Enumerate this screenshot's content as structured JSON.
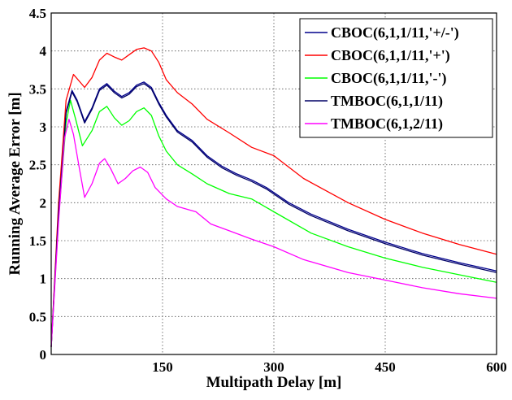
{
  "chart_data": {
    "type": "line",
    "xlabel": "Multipath Delay [m]",
    "ylabel": "Running Average Error [m]",
    "xlim": [
      0,
      600
    ],
    "ylim": [
      0,
      4.5
    ],
    "xticks": [
      150,
      300,
      450,
      600
    ],
    "yticks": [
      0,
      0.5,
      1,
      1.5,
      2,
      2.5,
      3,
      3.5,
      4,
      4.5
    ],
    "grid": true,
    "legend_position": "top-right",
    "series": [
      {
        "name": "CBOC(6,1,1/11,'+/-')",
        "color": "#00008b",
        "points": [
          [
            0,
            0.1
          ],
          [
            10,
            1.9
          ],
          [
            20,
            3.2
          ],
          [
            28,
            3.48
          ],
          [
            35,
            3.35
          ],
          [
            45,
            3.07
          ],
          [
            55,
            3.25
          ],
          [
            65,
            3.5
          ],
          [
            75,
            3.57
          ],
          [
            85,
            3.47
          ],
          [
            95,
            3.4
          ],
          [
            105,
            3.45
          ],
          [
            115,
            3.55
          ],
          [
            125,
            3.59
          ],
          [
            135,
            3.52
          ],
          [
            145,
            3.32
          ],
          [
            155,
            3.15
          ],
          [
            170,
            2.95
          ],
          [
            190,
            2.82
          ],
          [
            210,
            2.62
          ],
          [
            230,
            2.48
          ],
          [
            250,
            2.38
          ],
          [
            270,
            2.3
          ],
          [
            290,
            2.2
          ],
          [
            320,
            2.0
          ],
          [
            350,
            1.85
          ],
          [
            400,
            1.65
          ],
          [
            450,
            1.48
          ],
          [
            500,
            1.33
          ],
          [
            550,
            1.21
          ],
          [
            600,
            1.1
          ]
        ]
      },
      {
        "name": "CBOC(6,1,1/11,'+')",
        "color": "#ff0000",
        "points": [
          [
            0,
            0.1
          ],
          [
            10,
            2.0
          ],
          [
            20,
            3.35
          ],
          [
            30,
            3.69
          ],
          [
            38,
            3.6
          ],
          [
            45,
            3.52
          ],
          [
            55,
            3.65
          ],
          [
            65,
            3.88
          ],
          [
            75,
            3.97
          ],
          [
            85,
            3.92
          ],
          [
            95,
            3.88
          ],
          [
            105,
            3.95
          ],
          [
            115,
            4.02
          ],
          [
            125,
            4.04
          ],
          [
            135,
            4.0
          ],
          [
            145,
            3.85
          ],
          [
            155,
            3.62
          ],
          [
            170,
            3.45
          ],
          [
            190,
            3.3
          ],
          [
            210,
            3.1
          ],
          [
            240,
            2.92
          ],
          [
            270,
            2.73
          ],
          [
            300,
            2.62
          ],
          [
            340,
            2.32
          ],
          [
            400,
            2.0
          ],
          [
            450,
            1.78
          ],
          [
            500,
            1.6
          ],
          [
            550,
            1.45
          ],
          [
            600,
            1.32
          ]
        ]
      },
      {
        "name": "CBOC(6,1,1/11,'-')",
        "color": "#00ff00",
        "points": [
          [
            0,
            0.1
          ],
          [
            10,
            1.8
          ],
          [
            20,
            3.05
          ],
          [
            26,
            3.35
          ],
          [
            33,
            3.1
          ],
          [
            42,
            2.75
          ],
          [
            55,
            2.95
          ],
          [
            65,
            3.2
          ],
          [
            75,
            3.27
          ],
          [
            85,
            3.12
          ],
          [
            95,
            3.02
          ],
          [
            105,
            3.08
          ],
          [
            115,
            3.2
          ],
          [
            125,
            3.25
          ],
          [
            135,
            3.15
          ],
          [
            145,
            2.88
          ],
          [
            155,
            2.68
          ],
          [
            170,
            2.5
          ],
          [
            190,
            2.38
          ],
          [
            210,
            2.25
          ],
          [
            240,
            2.12
          ],
          [
            270,
            2.05
          ],
          [
            300,
            1.88
          ],
          [
            350,
            1.6
          ],
          [
            400,
            1.42
          ],
          [
            450,
            1.27
          ],
          [
            500,
            1.15
          ],
          [
            550,
            1.05
          ],
          [
            600,
            0.95
          ]
        ]
      },
      {
        "name": "TMBOC(6,1,1/11)",
        "color": "#000066",
        "points": [
          [
            0,
            0.1
          ],
          [
            10,
            1.88
          ],
          [
            20,
            3.18
          ],
          [
            28,
            3.46
          ],
          [
            35,
            3.33
          ],
          [
            45,
            3.05
          ],
          [
            55,
            3.23
          ],
          [
            65,
            3.48
          ],
          [
            75,
            3.55
          ],
          [
            85,
            3.45
          ],
          [
            95,
            3.38
          ],
          [
            105,
            3.43
          ],
          [
            115,
            3.53
          ],
          [
            125,
            3.57
          ],
          [
            135,
            3.5
          ],
          [
            145,
            3.3
          ],
          [
            155,
            3.13
          ],
          [
            170,
            2.93
          ],
          [
            190,
            2.8
          ],
          [
            210,
            2.6
          ],
          [
            230,
            2.46
          ],
          [
            250,
            2.36
          ],
          [
            270,
            2.28
          ],
          [
            290,
            2.18
          ],
          [
            320,
            1.98
          ],
          [
            350,
            1.83
          ],
          [
            400,
            1.63
          ],
          [
            450,
            1.46
          ],
          [
            500,
            1.31
          ],
          [
            550,
            1.19
          ],
          [
            600,
            1.08
          ]
        ]
      },
      {
        "name": "TMBOC(6,1,2/11)",
        "color": "#ff00ff",
        "points": [
          [
            0,
            0.1
          ],
          [
            10,
            1.75
          ],
          [
            18,
            2.85
          ],
          [
            24,
            3.1
          ],
          [
            30,
            2.9
          ],
          [
            38,
            2.45
          ],
          [
            45,
            2.07
          ],
          [
            55,
            2.25
          ],
          [
            65,
            2.52
          ],
          [
            72,
            2.58
          ],
          [
            80,
            2.45
          ],
          [
            90,
            2.25
          ],
          [
            100,
            2.32
          ],
          [
            110,
            2.42
          ],
          [
            120,
            2.47
          ],
          [
            130,
            2.4
          ],
          [
            140,
            2.2
          ],
          [
            155,
            2.05
          ],
          [
            170,
            1.95
          ],
          [
            195,
            1.88
          ],
          [
            215,
            1.72
          ],
          [
            240,
            1.63
          ],
          [
            270,
            1.52
          ],
          [
            300,
            1.42
          ],
          [
            340,
            1.25
          ],
          [
            400,
            1.08
          ],
          [
            450,
            0.98
          ],
          [
            500,
            0.88
          ],
          [
            550,
            0.8
          ],
          [
            600,
            0.74
          ]
        ]
      }
    ]
  }
}
